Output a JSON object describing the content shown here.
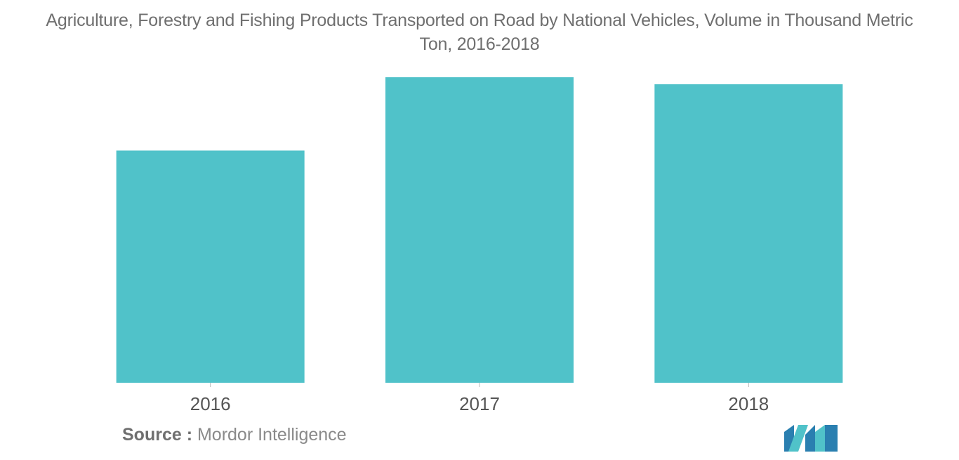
{
  "title_line1": "Agriculture, Forestry and Fishing Products Transported on Road by National Vehicles, Volume in Thousand Metric",
  "title_line2": "Ton, 2016-2018",
  "source_label": "Source :",
  "source_text": " Mordor Intelligence",
  "colors": {
    "bar": "#50C2C9",
    "title": "#6f6f6f",
    "tick": "#555555",
    "axis": "#dddddd",
    "logo_dark": "#2a7fb0",
    "logo_light": "#50c2c9"
  },
  "logo_name": "mordor-intelligence-logo",
  "chart_data": {
    "type": "bar",
    "title": "Agriculture, Forestry and Fishing Products Transported on Road by National Vehicles, Volume in Thousand Metric Ton, 2016-2018",
    "categories": [
      "2016",
      "2017",
      "2018"
    ],
    "values": [
      76,
      100,
      97.7
    ],
    "xlabel": "",
    "ylabel": "",
    "ylim": [
      0,
      100
    ],
    "grid": false,
    "legend": "none",
    "value_note": "no printed y-axis; values are relative bar heights (2017 = 100)"
  }
}
